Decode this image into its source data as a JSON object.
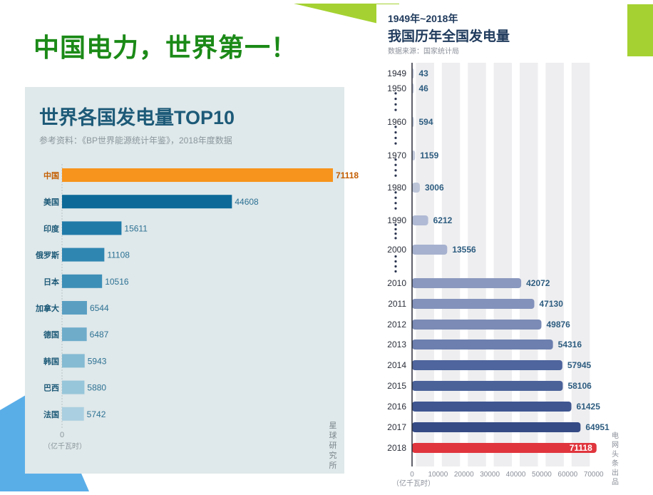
{
  "slide_title": "中国电力，世界第一！",
  "colors": {
    "green_accent": "#a5d232",
    "blue_accent": "#5aaee8",
    "title_green": "#1b8a17"
  },
  "chart_data": [
    {
      "type": "bar",
      "orientation": "horizontal",
      "title": "世界各国发电量TOP10",
      "subtitle": "参考资料：《BP世界能源统计年鉴》，2018年度数据",
      "categories": [
        "中国",
        "美国",
        "印度",
        "俄罗斯",
        "日本",
        "加拿大",
        "德国",
        "韩国",
        "巴西",
        "法国"
      ],
      "values": [
        71118,
        44608,
        15611,
        11108,
        10516,
        6544,
        6487,
        5943,
        5880,
        5742
      ],
      "axis_zero_label": "0",
      "unit_label": "（亿千瓦时）",
      "source_mark": "星球研究所",
      "highlight_color": "#f7941d",
      "bar_colors": [
        "#f7941d",
        "#0d6a98",
        "#1f7aa8",
        "#2f86b1",
        "#3d8fb7",
        "#5a9fc2",
        "#6eacca",
        "#85bbd3",
        "#97c6da",
        "#aacfe0"
      ]
    },
    {
      "type": "bar",
      "orientation": "horizontal",
      "title_line1": "1949年~2018年",
      "title_line2": "我国历年全国发电量",
      "source": "数据来源：国家统计局",
      "categories": [
        "1949",
        "1950",
        "1960",
        "1970",
        "1980",
        "1990",
        "2000",
        "2010",
        "2011",
        "2012",
        "2013",
        "2014",
        "2015",
        "2016",
        "2017",
        "2018"
      ],
      "values": [
        43,
        46,
        594,
        1159,
        3006,
        6212,
        13556,
        42072,
        47130,
        49876,
        54316,
        57945,
        58106,
        61425,
        64951,
        71118
      ],
      "x_ticks": [
        "0",
        "10000",
        "20000",
        "30000",
        "40000",
        "50000",
        "60000",
        "70000"
      ],
      "xlim": [
        0,
        72000
      ],
      "unit_label": "（亿千瓦时）",
      "source_mark": "电网头条出品",
      "highlight_color": "#e0353d"
    }
  ]
}
